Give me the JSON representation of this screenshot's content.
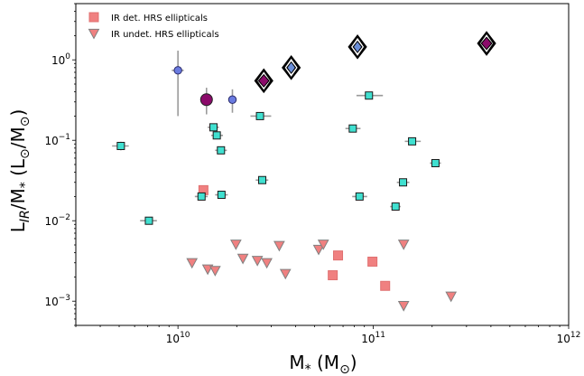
{
  "chart_data": {
    "type": "scatter",
    "title": "",
    "xlabel": {
      "main": "M",
      "sub": "*",
      "unit_open": " (M",
      "unit_sub": "⊙",
      "unit_close": ")"
    },
    "ylabel": {
      "main": "L",
      "sub": "IR",
      "slash": "/M",
      "sub2": "*",
      "unit_open": "  (L",
      "unit_sub1": "⊙",
      "unit_mid": "/M",
      "unit_sub2": "⊙",
      "unit_close": ")"
    },
    "x_scale": "log",
    "y_scale": "log",
    "xlim": [
      3000000000.0,
      1000000000000.0
    ],
    "ylim": [
      0.0005,
      5
    ],
    "grid": false,
    "legend_position": "top-left",
    "x_ticks": [
      {
        "value": 10000000000.0,
        "base": "10",
        "exp": "10"
      },
      {
        "value": 100000000000.0,
        "base": "10",
        "exp": "11"
      },
      {
        "value": 1000000000000.0,
        "base": "10",
        "exp": "12"
      }
    ],
    "y_ticks": [
      {
        "value": 0.001,
        "base": "10",
        "exp": "−3"
      },
      {
        "value": 0.01,
        "base": "10",
        "exp": "−2"
      },
      {
        "value": 0.1,
        "base": "10",
        "exp": "−1"
      },
      {
        "value": 1,
        "base": "10",
        "exp": "0"
      }
    ],
    "colors": {
      "ir_detected": "#f08080",
      "ir_undetected": "#f08080",
      "teal_squares": "#40e0d0",
      "blue_circles": "#6a7be0",
      "purple_circles": "#8b0a6a",
      "diamond_inner": "#6a8ed8",
      "error_bar": "#9a9a9a"
    },
    "series": [
      {
        "name": "IR det. HRS ellipticals",
        "marker": "square",
        "points": [
          {
            "x": 13500000000.0,
            "y": 0.024
          },
          {
            "x": 62000000000.0,
            "y": 0.0021
          },
          {
            "x": 66000000000.0,
            "y": 0.0037
          },
          {
            "x": 99000000000.0,
            "y": 0.0031
          },
          {
            "x": 115000000000.0,
            "y": 0.00155
          }
        ]
      },
      {
        "name": "IR undet. HRS ellipticals",
        "marker": "triangle-down",
        "points": [
          {
            "x": 11800000000.0,
            "y": 0.003
          },
          {
            "x": 14200000000.0,
            "y": 0.0025
          },
          {
            "x": 15500000000.0,
            "y": 0.0024
          },
          {
            "x": 19800000000.0,
            "y": 0.0051
          },
          {
            "x": 21500000000.0,
            "y": 0.0034
          },
          {
            "x": 25500000000.0,
            "y": 0.0032
          },
          {
            "x": 28500000000.0,
            "y": 0.003
          },
          {
            "x": 33000000000.0,
            "y": 0.0049
          },
          {
            "x": 35500000000.0,
            "y": 0.0022
          },
          {
            "x": 52500000000.0,
            "y": 0.0044
          },
          {
            "x": 55500000000.0,
            "y": 0.0051
          },
          {
            "x": 143000000000.0,
            "y": 0.0051
          },
          {
            "x": 143000000000.0,
            "y": 0.00088
          },
          {
            "x": 250000000000.0,
            "y": 0.00115
          }
        ]
      },
      {
        "name": "",
        "marker": "square-teal",
        "points": [
          {
            "x": 5100000000.0,
            "y": 0.085,
            "xerr": [
              4600000000.0,
              5600000000.0
            ],
            "yerr": [
              0.075,
              0.096
            ]
          },
          {
            "x": 7100000000.0,
            "y": 0.01,
            "xerr": [
              6400000000.0,
              7800000000.0
            ]
          },
          {
            "x": 13200000000.0,
            "y": 0.02,
            "xerr": [
              12200000000.0,
              14200000000.0
            ]
          },
          {
            "x": 15200000000.0,
            "y": 0.145,
            "xerr": [
              14200000000.0,
              16200000000.0
            ]
          },
          {
            "x": 15800000000.0,
            "y": 0.115,
            "xerr": [
              14800000000.0,
              17000000000.0
            ]
          },
          {
            "x": 16600000000.0,
            "y": 0.075,
            "xerr": [
              15500000000.0,
              17800000000.0
            ]
          },
          {
            "x": 16700000000.0,
            "y": 0.021,
            "xerr": [
              15500000000.0,
              18000000000.0
            ]
          },
          {
            "x": 26300000000.0,
            "y": 0.2,
            "xerr": [
              23500000000.0,
              30000000000.0
            ]
          },
          {
            "x": 27000000000.0,
            "y": 0.032,
            "xerr": [
              25000000000.0,
              29000000000.0
            ]
          },
          {
            "x": 78500000000.0,
            "y": 0.14,
            "xerr": [
              72000000000.0,
              86000000000.0
            ]
          },
          {
            "x": 85000000000.0,
            "y": 0.02,
            "xerr": [
              78000000000.0,
              93000000000.0
            ]
          },
          {
            "x": 95000000000.0,
            "y": 0.36,
            "xerr": [
              82000000000.0,
              112000000000.0
            ]
          },
          {
            "x": 130000000000.0,
            "y": 0.015,
            "xerr": [
              122000000000.0,
              138000000000.0
            ]
          },
          {
            "x": 142000000000.0,
            "y": 0.03,
            "xerr": [
              132000000000.0,
              153000000000.0
            ]
          },
          {
            "x": 158000000000.0,
            "y": 0.097,
            "xerr": [
              145000000000.0,
              175000000000.0
            ]
          },
          {
            "x": 208000000000.0,
            "y": 0.052,
            "xerr": [
              195000000000.0,
              222000000000.0
            ]
          }
        ]
      },
      {
        "name": "",
        "marker": "circle-blue",
        "points": [
          {
            "x": 10000000000.0,
            "y": 0.74,
            "xerr": [
              9300000000.0,
              10700000000.0
            ],
            "yerr": [
              0.2,
              1.3
            ]
          },
          {
            "x": 19000000000.0,
            "y": 0.32,
            "yerr": [
              0.22,
              0.43
            ]
          }
        ]
      },
      {
        "name": "",
        "marker": "circle-purple",
        "points": [
          {
            "x": 14000000000.0,
            "y": 0.32,
            "yerr": [
              0.21,
              0.45
            ]
          }
        ]
      },
      {
        "name": "",
        "marker": "diamond-purple",
        "points": [
          {
            "x": 27500000000.0,
            "y": 0.55
          },
          {
            "x": 380000000000.0,
            "y": 1.6
          }
        ]
      },
      {
        "name": "",
        "marker": "diamond-blue",
        "points": [
          {
            "x": 38000000000.0,
            "y": 0.8
          },
          {
            "x": 83000000000.0,
            "y": 1.45,
            "yerr": [
              1.2,
              1.75
            ]
          }
        ]
      }
    ]
  }
}
